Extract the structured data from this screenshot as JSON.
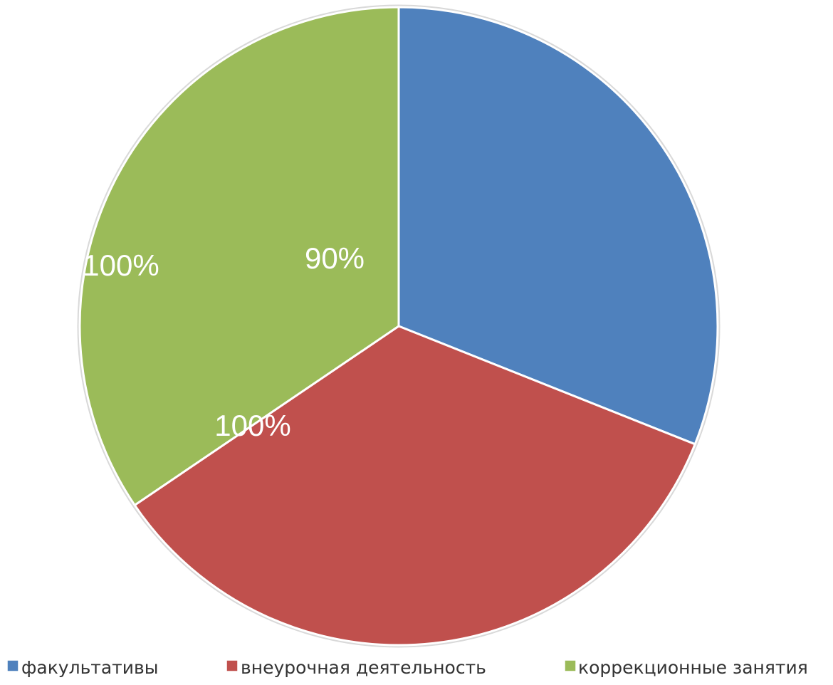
{
  "chart_data": {
    "type": "pie",
    "categories": [
      "факультативы",
      "внеурочная деятельность",
      "коррекционные занятия"
    ],
    "values": [
      90,
      100,
      100
    ],
    "data_labels": [
      "90%",
      "100%",
      "100%"
    ],
    "colors": [
      "#4f81bd",
      "#c0504d",
      "#9bbb59"
    ],
    "start_angle_deg": 0,
    "direction": "clockwise",
    "legend_position": "bottom"
  }
}
